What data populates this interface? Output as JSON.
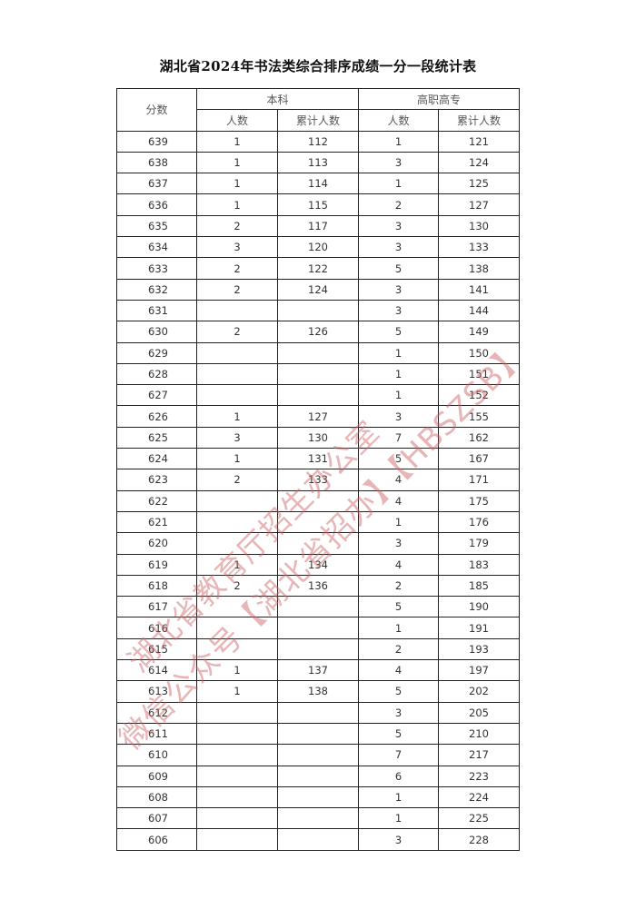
{
  "title": "湖北省2024年书法类综合排序成绩一分一段统计表",
  "headers": {
    "score": "分数",
    "undergrad": "本科",
    "vocational": "高职高专",
    "count": "人数",
    "cumulative": "累计人数"
  },
  "rows": [
    [
      "639",
      "1",
      "112",
      "1",
      "121"
    ],
    [
      "638",
      "1",
      "113",
      "3",
      "124"
    ],
    [
      "637",
      "1",
      "114",
      "1",
      "125"
    ],
    [
      "636",
      "1",
      "115",
      "2",
      "127"
    ],
    [
      "635",
      "2",
      "117",
      "3",
      "130"
    ],
    [
      "634",
      "3",
      "120",
      "3",
      "133"
    ],
    [
      "633",
      "2",
      "122",
      "5",
      "138"
    ],
    [
      "632",
      "2",
      "124",
      "3",
      "141"
    ],
    [
      "631",
      "",
      "",
      "3",
      "144"
    ],
    [
      "630",
      "2",
      "126",
      "5",
      "149"
    ],
    [
      "629",
      "",
      "",
      "1",
      "150"
    ],
    [
      "628",
      "",
      "",
      "1",
      "151"
    ],
    [
      "627",
      "",
      "",
      "1",
      "152"
    ],
    [
      "626",
      "1",
      "127",
      "3",
      "155"
    ],
    [
      "625",
      "3",
      "130",
      "7",
      "162"
    ],
    [
      "624",
      "1",
      "131",
      "5",
      "167"
    ],
    [
      "623",
      "2",
      "133",
      "4",
      "171"
    ],
    [
      "622",
      "",
      "",
      "4",
      "175"
    ],
    [
      "621",
      "",
      "",
      "1",
      "176"
    ],
    [
      "620",
      "",
      "",
      "3",
      "179"
    ],
    [
      "619",
      "1",
      "134",
      "4",
      "183"
    ],
    [
      "618",
      "2",
      "136",
      "2",
      "185"
    ],
    [
      "617",
      "",
      "",
      "5",
      "190"
    ],
    [
      "616",
      "",
      "",
      "1",
      "191"
    ],
    [
      "615",
      "",
      "",
      "2",
      "193"
    ],
    [
      "614",
      "1",
      "137",
      "4",
      "197"
    ],
    [
      "613",
      "1",
      "138",
      "5",
      "202"
    ],
    [
      "612",
      "",
      "",
      "3",
      "205"
    ],
    [
      "611",
      "",
      "",
      "5",
      "210"
    ],
    [
      "610",
      "",
      "",
      "7",
      "217"
    ],
    [
      "609",
      "",
      "",
      "6",
      "223"
    ],
    [
      "608",
      "",
      "",
      "1",
      "224"
    ],
    [
      "607",
      "",
      "",
      "1",
      "225"
    ],
    [
      "606",
      "",
      "",
      "3",
      "228"
    ]
  ],
  "watermark": {
    "line1": "湖北省教育厅招生办公室",
    "line2": "微信公众号【湖北省招办】【HBSZSB】",
    "color": "#cd5a5f"
  }
}
